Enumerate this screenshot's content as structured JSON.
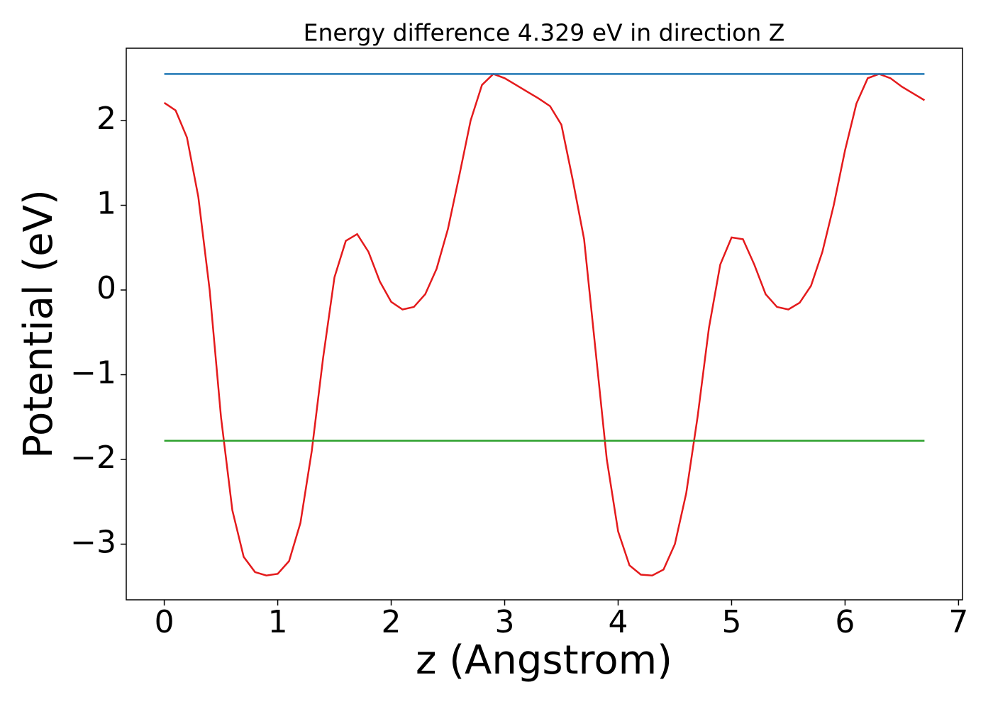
{
  "chart_data": {
    "type": "line",
    "title": "Energy difference 4.329 eV in direction Z",
    "x_label": "z (Angstrom)",
    "y_label": "Potential (eV)",
    "xlim": [
      -0.335,
      7.035
    ],
    "ylim": [
      -3.657,
      2.854
    ],
    "xticks": [
      0,
      1,
      2,
      3,
      4,
      5,
      6,
      7
    ],
    "yticks": [
      {
        "value": -3,
        "label": "−3"
      },
      {
        "value": -2,
        "label": "−2"
      },
      {
        "value": -1,
        "label": "−1"
      },
      0,
      1,
      2
    ],
    "grid": false,
    "series": [
      {
        "color": "#e41a1c",
        "x": [
          0,
          0.1,
          0.2,
          0.3,
          0.4,
          0.5,
          0.6,
          0.7,
          0.8,
          0.9,
          1.0,
          1.1,
          1.2,
          1.3,
          1.4,
          1.5,
          1.6,
          1.7,
          1.8,
          1.9,
          2.0,
          2.1,
          2.2,
          2.3,
          2.4,
          2.5,
          2.6,
          2.7,
          2.8,
          2.9,
          3.0,
          3.1,
          3.2,
          3.3,
          3.4,
          3.5,
          3.6,
          3.7,
          3.8,
          3.9,
          4.0,
          4.1,
          4.2,
          4.3,
          4.4,
          4.5,
          4.6,
          4.7,
          4.8,
          4.9,
          5.0,
          5.1,
          5.2,
          5.3,
          5.4,
          5.5,
          5.6,
          5.7,
          5.8,
          5.9,
          6.0,
          6.1,
          6.2,
          6.3,
          6.4,
          6.5,
          6.6,
          6.7
        ],
        "values": [
          2.21,
          2.12,
          1.8,
          1.1,
          0.0,
          -1.5,
          -2.6,
          -3.15,
          -3.33,
          -3.37,
          -3.35,
          -3.2,
          -2.75,
          -1.9,
          -0.8,
          0.15,
          0.58,
          0.66,
          0.45,
          0.1,
          -0.14,
          -0.23,
          -0.2,
          -0.05,
          0.25,
          0.72,
          1.35,
          2.0,
          2.42,
          2.55,
          2.5,
          2.42,
          2.34,
          2.26,
          2.17,
          1.95,
          1.3,
          0.6,
          -0.7,
          -2.0,
          -2.85,
          -3.25,
          -3.36,
          -3.37,
          -3.3,
          -3.0,
          -2.4,
          -1.5,
          -0.45,
          0.3,
          0.62,
          0.6,
          0.3,
          -0.05,
          -0.2,
          -0.23,
          -0.15,
          0.05,
          0.45,
          1.0,
          1.65,
          2.2,
          2.5,
          2.55,
          2.5,
          2.4,
          2.32,
          2.24
        ]
      },
      {
        "color": "#1f77b4",
        "x": [
          0,
          6.7
        ],
        "values": [
          2.55,
          2.55
        ]
      },
      {
        "color": "#2ca02c",
        "x": [
          0,
          6.7
        ],
        "values": [
          -1.779,
          -1.779
        ]
      }
    ]
  }
}
